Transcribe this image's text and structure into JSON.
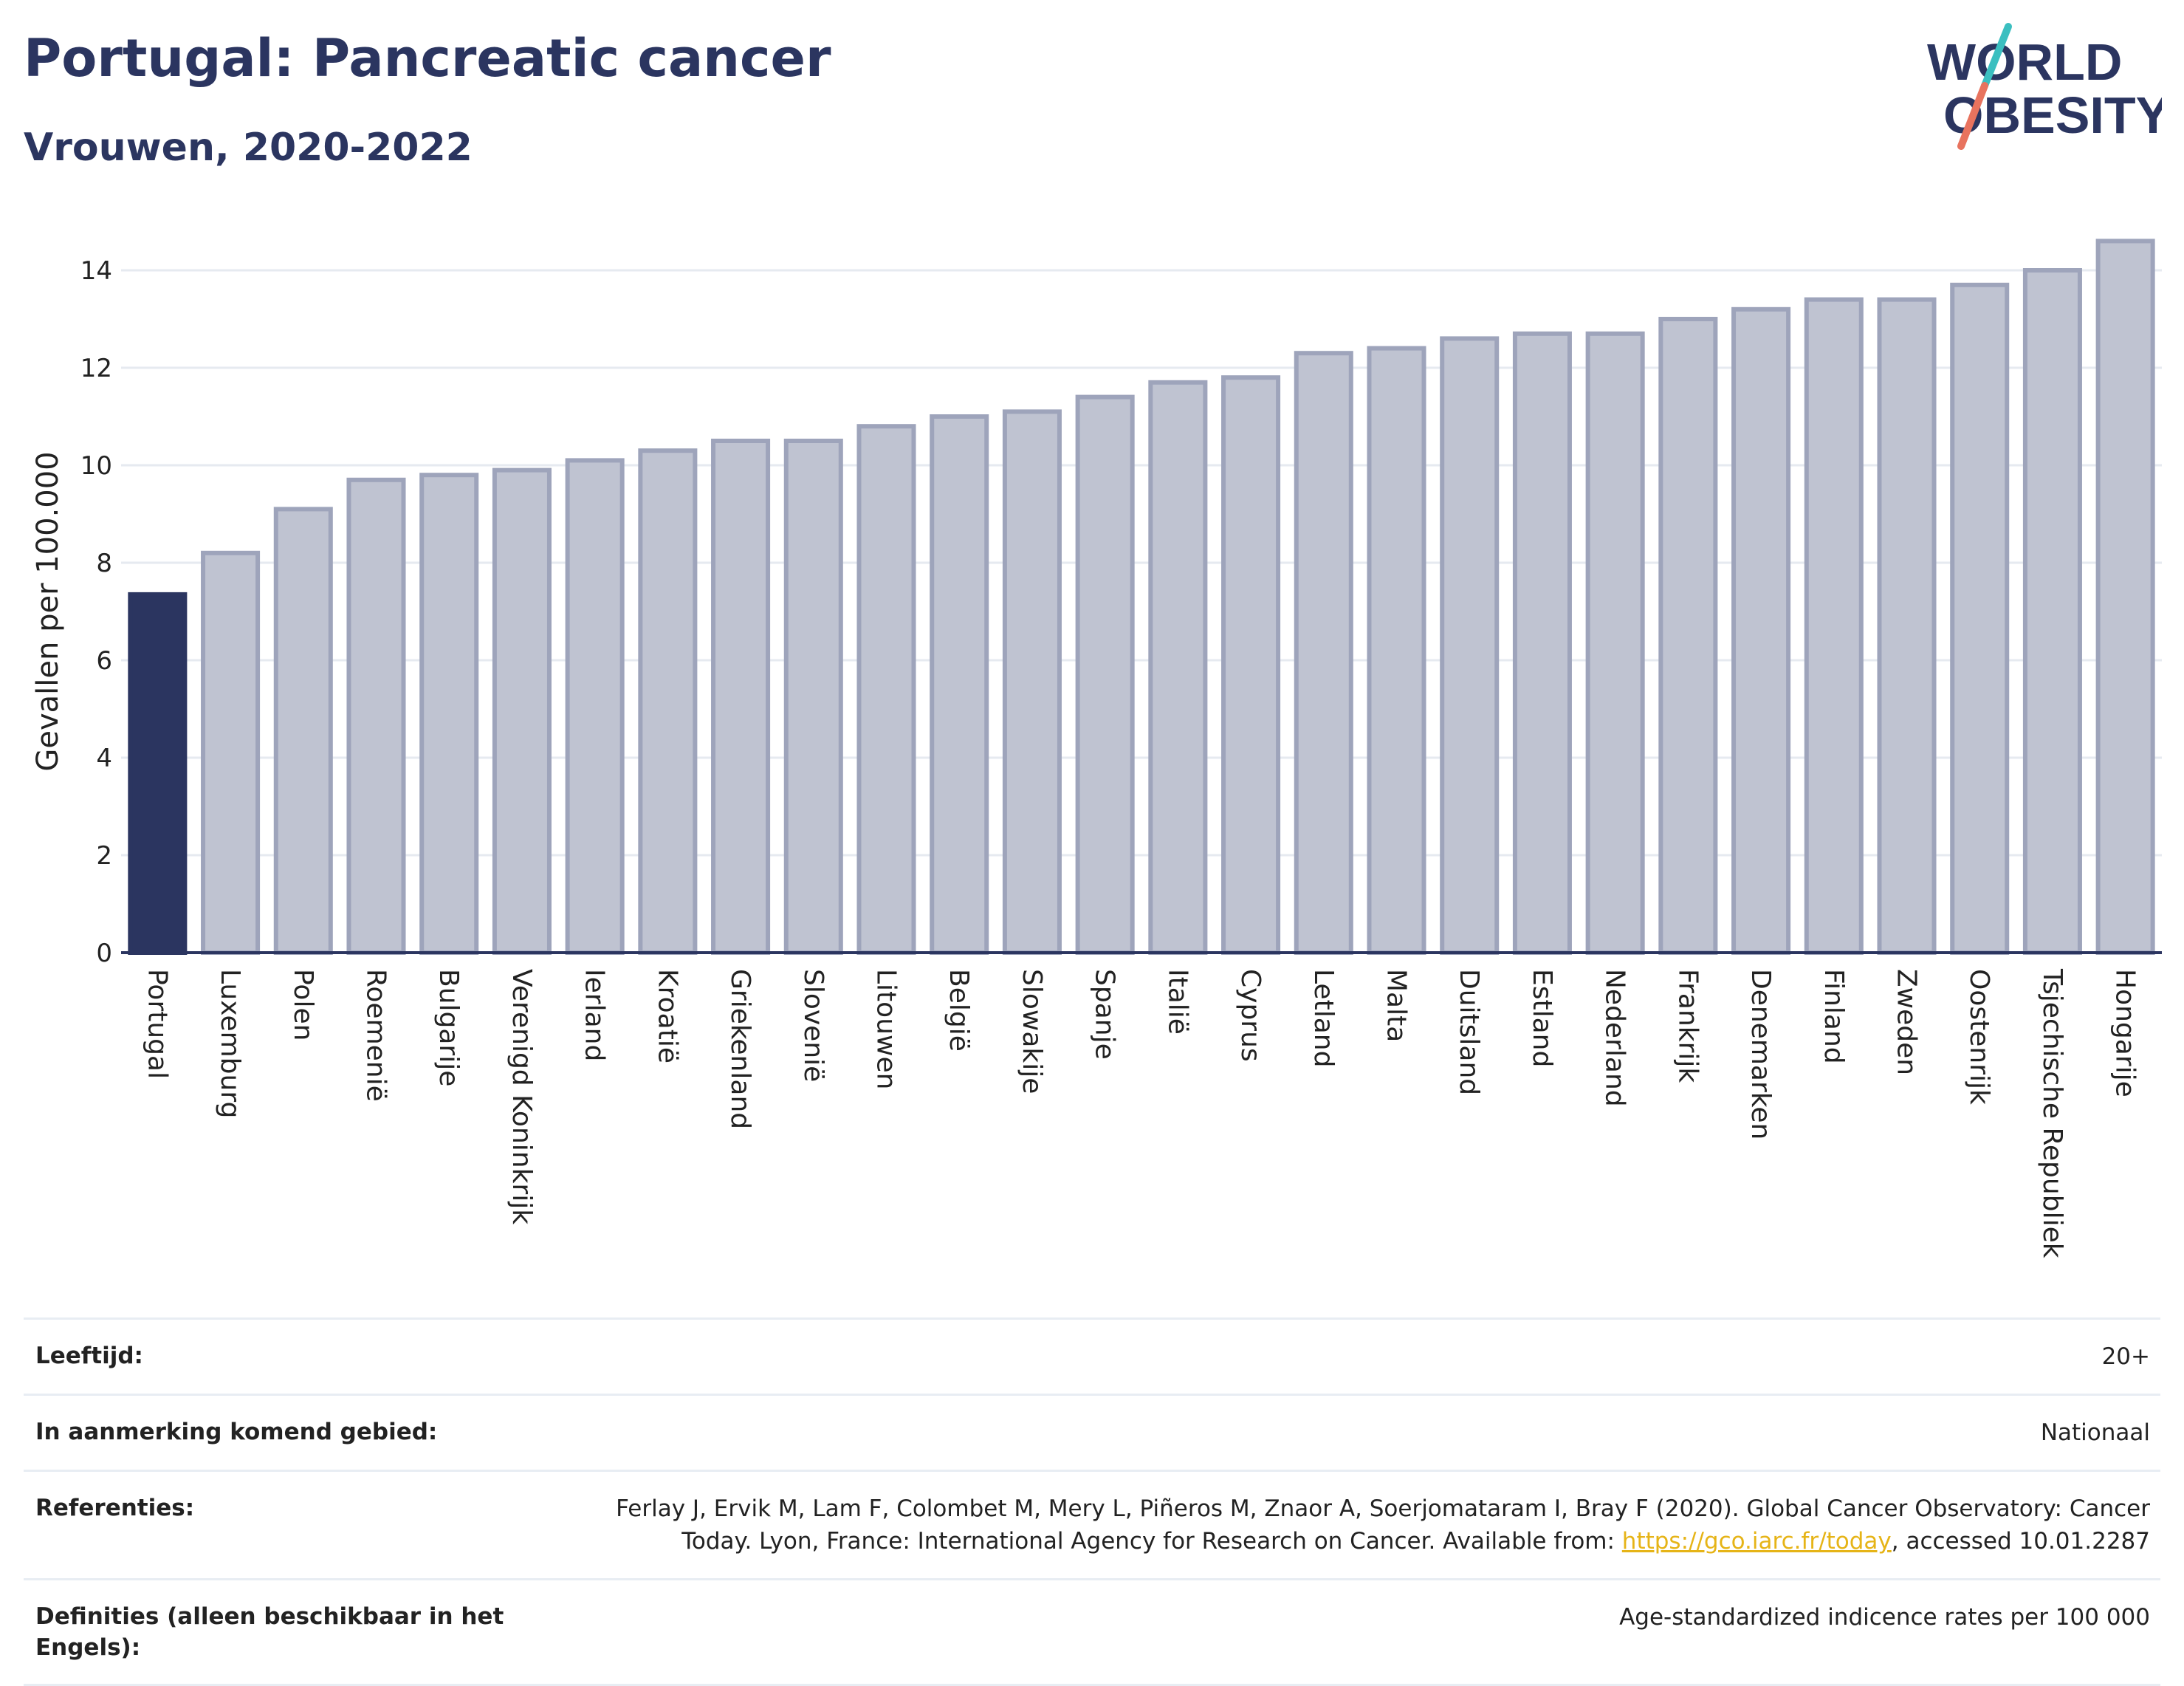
{
  "header": {
    "title": "Portugal: Pancreatic cancer",
    "subtitle": "Vrouwen, 2020-2022"
  },
  "logo": {
    "line1": "WORLD",
    "line2": "OBESITY"
  },
  "colors": {
    "highlight": "#2b3560",
    "bar": "#bfc3d1",
    "bar_edge": "#9ea4bb",
    "grid": "#e6eaf0"
  },
  "chart_data": {
    "type": "bar",
    "ylabel": "Gevallen per 100.000",
    "ylim": [
      0,
      15
    ],
    "yticks": [
      0,
      2,
      4,
      6,
      8,
      10,
      12,
      14
    ],
    "highlight": "Portugal",
    "categories": [
      "Portugal",
      "Luxemburg",
      "Polen",
      "Roemenië",
      "Bulgarije",
      "Verenigd Koninkrijk",
      "Ierland",
      "Kroatië",
      "Griekenland",
      "Slovenië",
      "Litouwen",
      "België",
      "Slowakije",
      "Spanje",
      "Italië",
      "Cyprus",
      "Letland",
      "Malta",
      "Duitsland",
      "Estland",
      "Nederland",
      "Frankrijk",
      "Denemarken",
      "Finland",
      "Zweden",
      "Oostenrijk",
      "Tsjechische Republiek",
      "Hongarije"
    ],
    "values": [
      7.35,
      8.2,
      9.1,
      9.7,
      9.8,
      9.9,
      10.1,
      10.3,
      10.5,
      10.5,
      10.8,
      11.0,
      11.1,
      11.4,
      11.7,
      11.8,
      12.3,
      12.4,
      12.6,
      12.7,
      12.7,
      13.0,
      13.2,
      13.4,
      13.4,
      13.7,
      14.0,
      14.6
    ]
  },
  "meta": {
    "age_label": "Leeftijd:",
    "age_value": "20+",
    "area_label": "In aanmerking komend gebied:",
    "area_value": "Nationaal",
    "ref_label": "Referenties:",
    "ref_text_1": "Ferlay J, Ervik M, Lam F, Colombet M, Mery L, Piñeros M, Znaor A, Soerjomataram I, Bray F (2020). Global Cancer Observatory: Cancer",
    "ref_text_2": "Today. Lyon, France: International Agency for Research on Cancer. Available from: ",
    "ref_link": "https://gco.iarc.fr/today",
    "ref_text_3": ", accessed 10.01.2287",
    "def_label": "Definities (alleen beschikbaar in het Engels):",
    "def_value": "Age-standardized indicence rates per 100 000"
  }
}
